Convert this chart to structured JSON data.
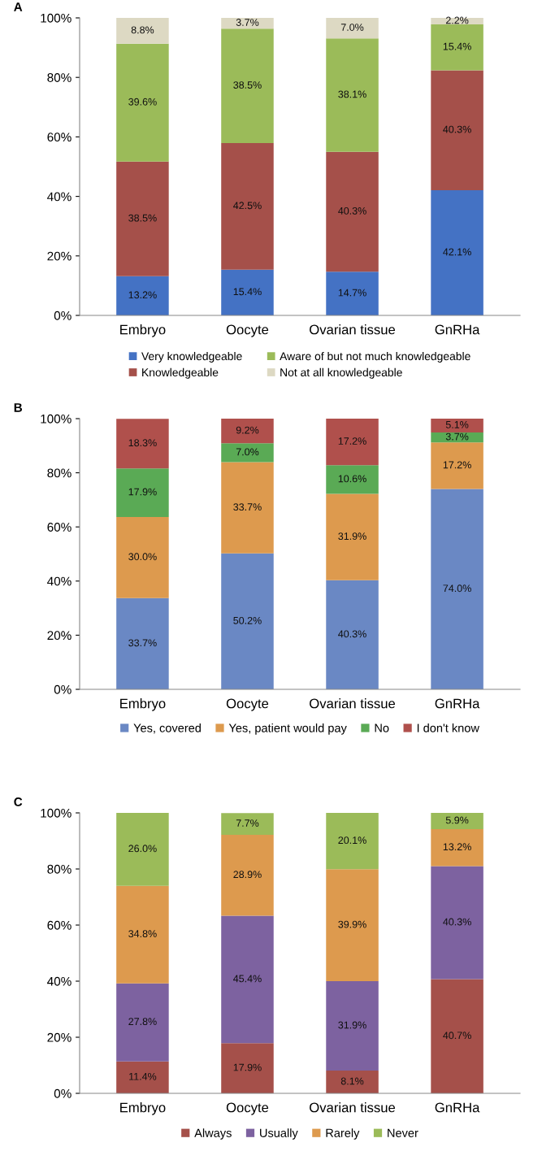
{
  "chart_data": [
    {
      "type": "bar",
      "title": "A",
      "stacked": true,
      "legend": "bottom",
      "categories": [
        "Embryo",
        "Oocyte",
        "Ovarian tissue",
        "GnRHa"
      ],
      "ylim": [
        0,
        100
      ],
      "yticks": [
        {
          "value": 0,
          "label": "0%"
        },
        {
          "value": 20,
          "label": "20%"
        },
        {
          "value": 40,
          "label": "40%"
        },
        {
          "value": 60,
          "label": "60%"
        },
        {
          "value": 80,
          "label": "80%"
        },
        {
          "value": 100,
          "label": "100%"
        }
      ],
      "series": [
        {
          "name": "Very knowledgeable",
          "color": "#4472c4",
          "values": [
            13.2,
            15.4,
            14.7,
            42.1
          ],
          "value_labels": [
            "13.2%",
            "15.4%",
            "14.7%",
            "42.1%"
          ]
        },
        {
          "name": "Knowledgeable",
          "color": "#a5504a",
          "values": [
            38.5,
            42.5,
            40.3,
            40.3
          ],
          "value_labels": [
            "38.5%",
            "42.5%",
            "40.3%",
            "40.3%"
          ]
        },
        {
          "name": "Aware of but not much knowledgeable",
          "color": "#9bbb59",
          "values": [
            39.6,
            38.5,
            38.1,
            15.4
          ],
          "value_labels": [
            "39.6%",
            "38.5%",
            "38.1%",
            "15.4%"
          ]
        },
        {
          "name": "Not at all knowledgeable",
          "color": "#ddd9c3",
          "values": [
            8.8,
            3.7,
            7.0,
            2.2
          ],
          "value_labels": [
            "8.8%",
            "3.7%",
            "7.0%",
            "2.2%"
          ]
        }
      ]
    },
    {
      "type": "bar",
      "title": "B",
      "stacked": true,
      "legend": "bottom",
      "categories": [
        "Embryo",
        "Oocyte",
        "Ovarian tissue",
        "GnRHa"
      ],
      "ylim": [
        0,
        100
      ],
      "yticks": [
        {
          "value": 0,
          "label": "0%"
        },
        {
          "value": 20,
          "label": "20%"
        },
        {
          "value": 40,
          "label": "40%"
        },
        {
          "value": 60,
          "label": "60%"
        },
        {
          "value": 80,
          "label": "80%"
        },
        {
          "value": 100,
          "label": "100%"
        }
      ],
      "series": [
        {
          "name": "Yes, covered",
          "color": "#6a88c4",
          "values": [
            33.7,
            50.2,
            40.3,
            74.0
          ],
          "value_labels": [
            "33.7%",
            "50.2%",
            "40.3%",
            "74.0%"
          ]
        },
        {
          "name": "Yes, patient would pay",
          "color": "#dd9a4e",
          "values": [
            30.0,
            33.7,
            31.9,
            17.2
          ],
          "value_labels": [
            "30.0%",
            "33.7%",
            "31.9%",
            "17.2%"
          ]
        },
        {
          "name": "No",
          "color": "#5aaa55",
          "values": [
            17.9,
            7.0,
            10.6,
            3.7
          ],
          "value_labels": [
            "17.9%",
            "7.0%",
            "10.6%",
            "3.7%"
          ]
        },
        {
          "name": "I don't know",
          "color": "#b0504c",
          "values": [
            18.3,
            9.2,
            17.2,
            5.1
          ],
          "value_labels": [
            "18.3%",
            "9.2%",
            "17.2%",
            "5.1%"
          ]
        }
      ]
    },
    {
      "type": "bar",
      "title": "C",
      "stacked": true,
      "legend": "bottom",
      "categories": [
        "Embryo",
        "Oocyte",
        "Ovarian tissue",
        "GnRHa"
      ],
      "ylim": [
        0,
        100
      ],
      "yticks": [
        {
          "value": 0,
          "label": "0%"
        },
        {
          "value": 20,
          "label": "20%"
        },
        {
          "value": 40,
          "label": "40%"
        },
        {
          "value": 60,
          "label": "60%"
        },
        {
          "value": 80,
          "label": "80%"
        },
        {
          "value": 100,
          "label": "100%"
        }
      ],
      "series": [
        {
          "name": "Always",
          "color": "#a5504a",
          "values": [
            11.4,
            17.9,
            8.1,
            40.7
          ],
          "value_labels": [
            "11.4%",
            "17.9%",
            "8.1%",
            "40.7%"
          ]
        },
        {
          "name": "Usually",
          "color": "#7d62a0",
          "values": [
            27.8,
            45.4,
            31.9,
            40.3
          ],
          "value_labels": [
            "27.8%",
            "45.4%",
            "31.9%",
            "40.3%"
          ]
        },
        {
          "name": "Rarely",
          "color": "#dd9a4e",
          "values": [
            34.8,
            28.9,
            39.9,
            13.2
          ],
          "value_labels": [
            "34.8%",
            "28.9%",
            "39.9%",
            "13.2%"
          ]
        },
        {
          "name": "Never",
          "color": "#9bbb59",
          "values": [
            26.0,
            7.7,
            20.1,
            5.9
          ],
          "value_labels": [
            "26.0%",
            "7.7%",
            "20.1%",
            "5.9%"
          ]
        }
      ]
    }
  ]
}
